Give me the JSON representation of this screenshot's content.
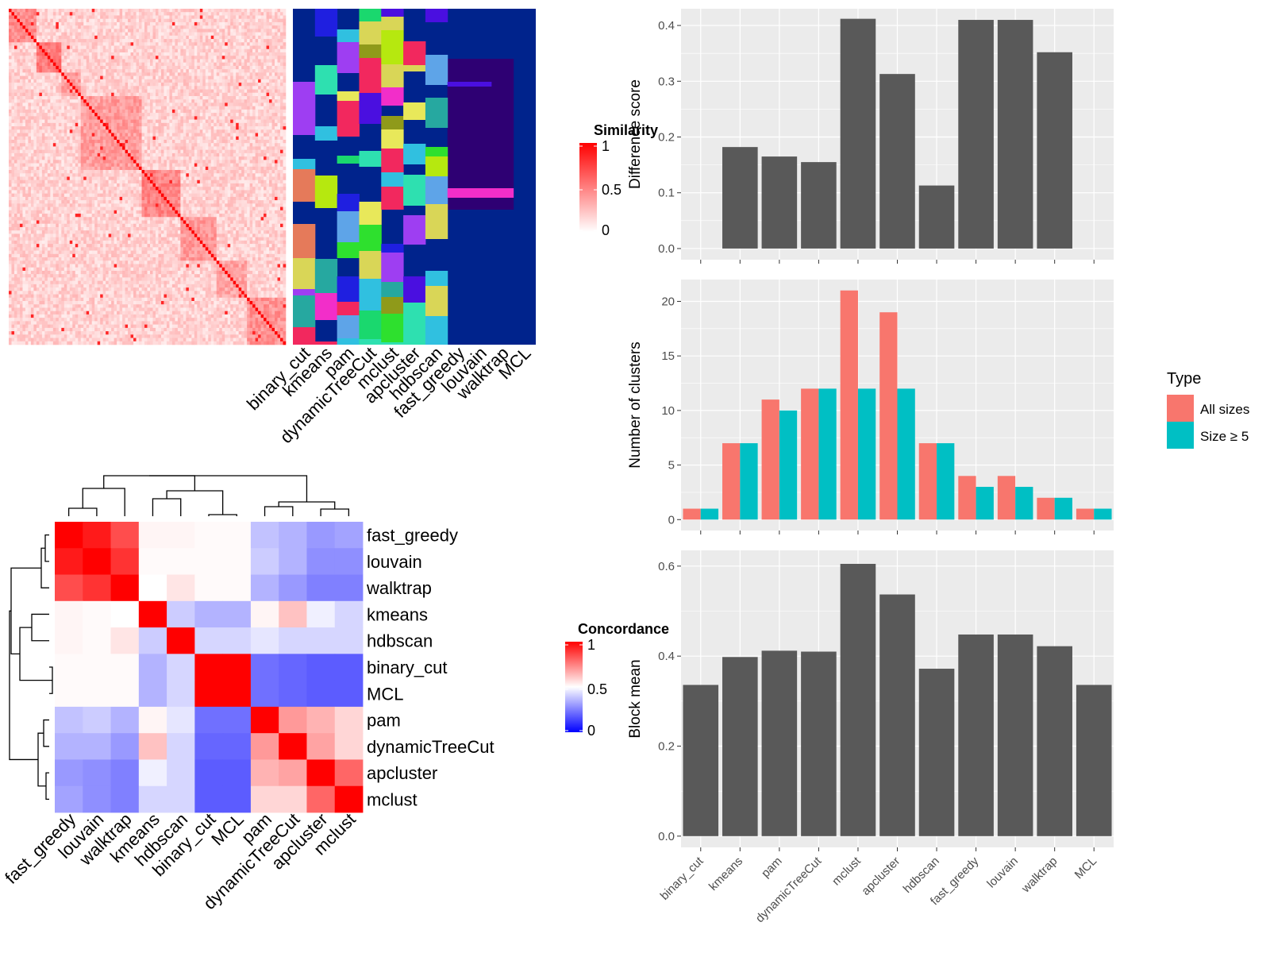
{
  "colors": {
    "panel_bg": "#EBEBEB",
    "grid": "#FFFFFF",
    "bar_dark": "#595959",
    "all_sizes": "#F8766D",
    "size_ge5": "#00BFC4",
    "heat_high": "#FF0000",
    "heat_low_white": "#FFFFFF",
    "conc_low": "#0000FF",
    "cluster_bg": "#00238C",
    "cluster_dark": "#2E0073"
  },
  "methods_order": [
    "binary_cut",
    "kmeans",
    "pam",
    "dynamicTreeCut",
    "mclust",
    "apcluster",
    "hdbscan",
    "fast_greedy",
    "louvain",
    "walktrap",
    "MCL"
  ],
  "heatmap_methods_order": [
    "fast_greedy",
    "louvain",
    "walktrap",
    "kmeans",
    "hdbscan",
    "binary_cut",
    "MCL",
    "pam",
    "dynamicTreeCut",
    "apcluster",
    "mclust"
  ],
  "similarity_legend": {
    "title": "Similarity",
    "ticks": [
      "1",
      "0.5",
      "0"
    ]
  },
  "concordance_legend": {
    "title": "Concordance",
    "ticks": [
      "1",
      "0.5",
      "0"
    ]
  },
  "concordance_matrix": [
    [
      1.0,
      0.95,
      0.85,
      0.52,
      0.52,
      0.51,
      0.51,
      0.38,
      0.35,
      0.3,
      0.32
    ],
    [
      0.95,
      1.0,
      0.9,
      0.51,
      0.51,
      0.51,
      0.51,
      0.4,
      0.35,
      0.28,
      0.28
    ],
    [
      0.85,
      0.9,
      1.0,
      0.5,
      0.55,
      0.51,
      0.51,
      0.35,
      0.3,
      0.25,
      0.25
    ],
    [
      0.52,
      0.51,
      0.5,
      1.0,
      0.4,
      0.35,
      0.35,
      0.52,
      0.62,
      0.47,
      0.42
    ],
    [
      0.52,
      0.51,
      0.55,
      0.4,
      1.0,
      0.42,
      0.42,
      0.45,
      0.42,
      0.42,
      0.42
    ],
    [
      0.51,
      0.51,
      0.51,
      0.35,
      0.42,
      1.0,
      1.0,
      0.22,
      0.2,
      0.18,
      0.18
    ],
    [
      0.51,
      0.51,
      0.51,
      0.35,
      0.42,
      1.0,
      1.0,
      0.22,
      0.2,
      0.18,
      0.18
    ],
    [
      0.38,
      0.4,
      0.35,
      0.52,
      0.45,
      0.22,
      0.22,
      1.0,
      0.7,
      0.65,
      0.58
    ],
    [
      0.35,
      0.35,
      0.3,
      0.62,
      0.42,
      0.2,
      0.2,
      0.7,
      1.0,
      0.68,
      0.58
    ],
    [
      0.3,
      0.28,
      0.25,
      0.47,
      0.42,
      0.18,
      0.18,
      0.65,
      0.68,
      1.0,
      0.8
    ],
    [
      0.32,
      0.28,
      0.25,
      0.42,
      0.42,
      0.18,
      0.18,
      0.58,
      0.58,
      0.8,
      1.0
    ]
  ],
  "chart_data": [
    {
      "type": "bar",
      "title": "",
      "xlabel": "",
      "ylabel": "Difference score",
      "categories": [
        "binary_cut",
        "kmeans",
        "pam",
        "dynamicTreeCut",
        "mclust",
        "apcluster",
        "hdbscan",
        "fast_greedy",
        "louvain",
        "walktrap",
        "MCL"
      ],
      "values": [
        0,
        0.182,
        0.165,
        0.155,
        0.412,
        0.313,
        0.113,
        0.41,
        0.41,
        0.352,
        0
      ],
      "ylim": [
        -0.02,
        0.43
      ],
      "yticks": [
        0.0,
        0.1,
        0.2,
        0.3,
        0.4
      ],
      "ytick_labels": [
        "0.0",
        "0.1",
        "0.2",
        "0.3",
        "0.4"
      ],
      "grid": true
    },
    {
      "type": "bar",
      "title": "",
      "xlabel": "",
      "ylabel": "Number of clusters",
      "categories": [
        "binary_cut",
        "kmeans",
        "pam",
        "dynamicTreeCut",
        "mclust",
        "apcluster",
        "hdbscan",
        "fast_greedy",
        "louvain",
        "walktrap",
        "MCL"
      ],
      "series": [
        {
          "name": "All sizes",
          "values": [
            1,
            7,
            11,
            12,
            21,
            19,
            7,
            4,
            4,
            2,
            1
          ]
        },
        {
          "name": "Size ≥ 5",
          "values": [
            1,
            7,
            10,
            12,
            12,
            12,
            7,
            3,
            3,
            2,
            1
          ]
        }
      ],
      "legend_title": "Type",
      "legend_position": "right",
      "ylim": [
        -1,
        22
      ],
      "yticks": [
        0,
        5,
        10,
        15,
        20
      ],
      "ytick_labels": [
        "0",
        "5",
        "10",
        "15",
        "20"
      ],
      "grid": true
    },
    {
      "type": "bar",
      "title": "",
      "xlabel": "",
      "ylabel": "Block mean",
      "categories": [
        "binary_cut",
        "kmeans",
        "pam",
        "dynamicTreeCut",
        "mclust",
        "apcluster",
        "hdbscan",
        "fast_greedy",
        "louvain",
        "walktrap",
        "MCL"
      ],
      "values": [
        0.336,
        0.398,
        0.412,
        0.41,
        0.605,
        0.537,
        0.372,
        0.448,
        0.448,
        0.422,
        0.336
      ],
      "ylim": [
        -0.025,
        0.635
      ],
      "yticks": [
        0.0,
        0.2,
        0.4,
        0.6
      ],
      "ytick_labels": [
        "0.0",
        "0.2",
        "0.4",
        "0.6"
      ],
      "grid": true
    }
  ]
}
